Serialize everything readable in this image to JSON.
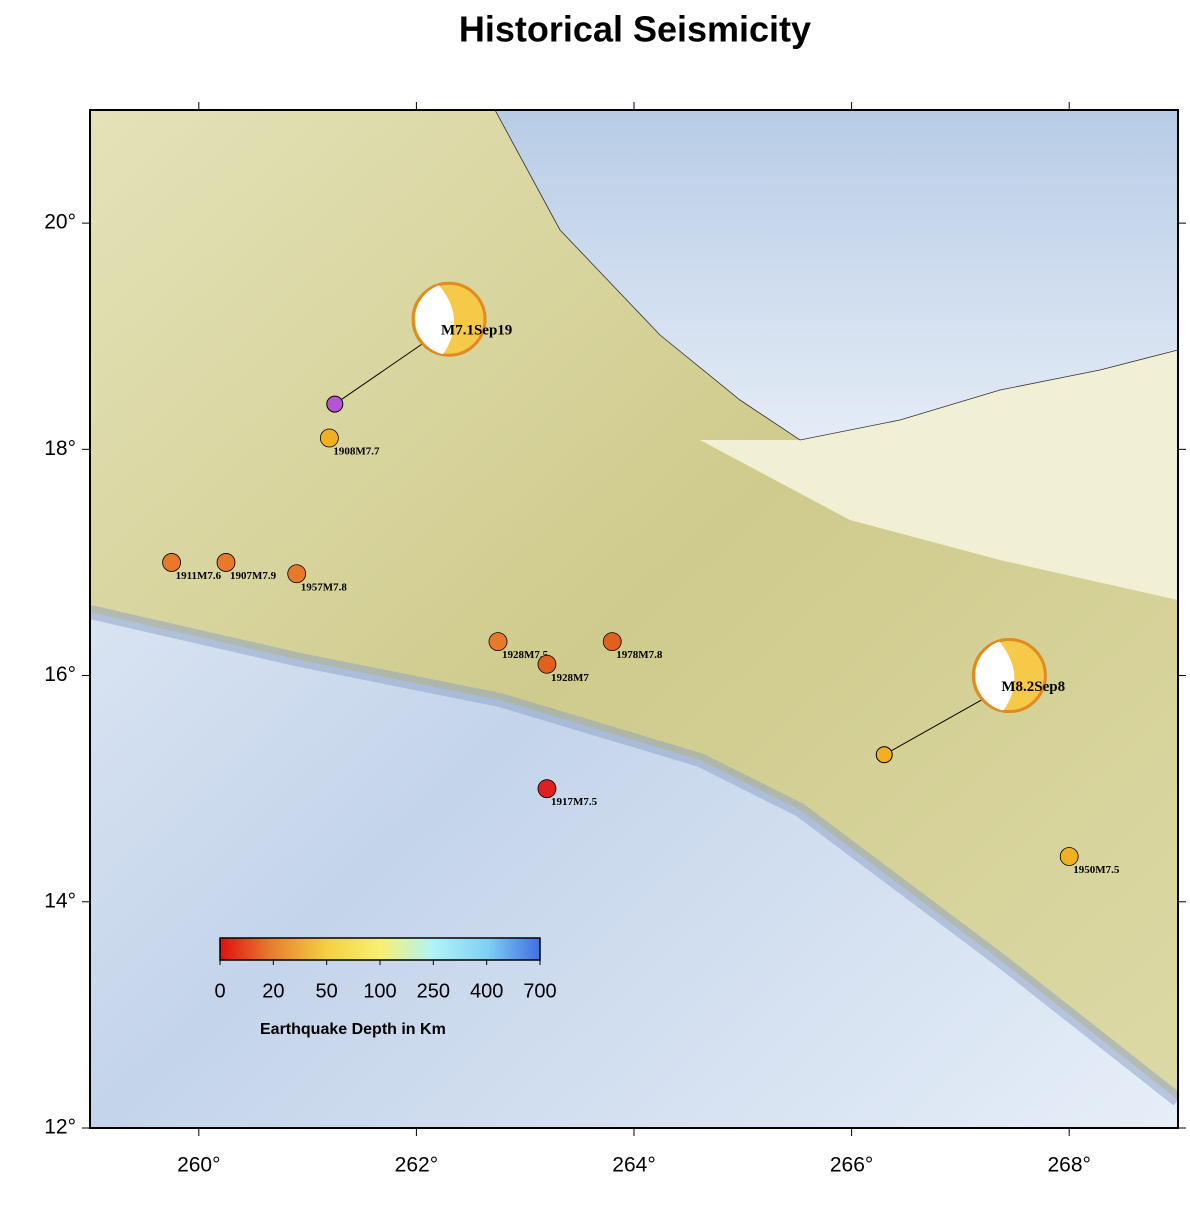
{
  "chart_data": {
    "type": "map",
    "title": "Historical Seismicity",
    "xlim": [
      259,
      269
    ],
    "ylim": [
      12,
      21
    ],
    "xticks": [
      {
        "value": 260,
        "label": "260°"
      },
      {
        "value": 262,
        "label": "262°"
      },
      {
        "value": 264,
        "label": "264°"
      },
      {
        "value": 266,
        "label": "266°"
      },
      {
        "value": 268,
        "label": "268°"
      }
    ],
    "yticks": [
      {
        "value": 12,
        "label": "12°"
      },
      {
        "value": 14,
        "label": "14°"
      },
      {
        "value": 16,
        "label": "16°"
      },
      {
        "value": 18,
        "label": "18°"
      },
      {
        "value": 20,
        "label": "20°"
      }
    ],
    "events": [
      {
        "name": "M7.1Sep19",
        "lon": 261.25,
        "lat": 18.4,
        "color": "#b455d6",
        "ball_lon": 262.3,
        "ball_lat": 19.15,
        "major": true
      },
      {
        "name": "M8.2Sep8",
        "lon": 266.3,
        "lat": 15.3,
        "color": "#f0b020",
        "ball_lon": 267.45,
        "ball_lat": 16.0,
        "major": true
      },
      {
        "name": "1908M7.7",
        "lon": 261.2,
        "lat": 18.1,
        "color": "#f0b020"
      },
      {
        "name": "1911M7.6",
        "lon": 259.75,
        "lat": 17.0,
        "color": "#e8782a"
      },
      {
        "name": "1907M7.9",
        "lon": 260.25,
        "lat": 17.0,
        "color": "#e8782a"
      },
      {
        "name": "1957M7.8",
        "lon": 260.9,
        "lat": 16.9,
        "color": "#e8782a"
      },
      {
        "name": "1928M7.5",
        "lon": 262.75,
        "lat": 16.3,
        "color": "#e8782a"
      },
      {
        "name": "1978M7.8",
        "lon": 263.8,
        "lat": 16.3,
        "color": "#e06020"
      },
      {
        "name": "1928M7",
        "lon": 263.2,
        "lat": 16.1,
        "color": "#e06020"
      },
      {
        "name": "1917M7.5",
        "lon": 263.2,
        "lat": 15.0,
        "color": "#e02020"
      },
      {
        "name": "1950M7.5",
        "lon": 268.0,
        "lat": 14.4,
        "color": "#f0b020"
      }
    ],
    "colorbar": {
      "label": "Earthquake Depth in Km",
      "ticks": [
        0,
        20,
        50,
        100,
        250,
        400,
        700
      ],
      "colors": [
        "#e01010",
        "#e88030",
        "#f5d040",
        "#f8f070",
        "#b0f4f8",
        "#80d0f4",
        "#4070e0"
      ]
    }
  }
}
